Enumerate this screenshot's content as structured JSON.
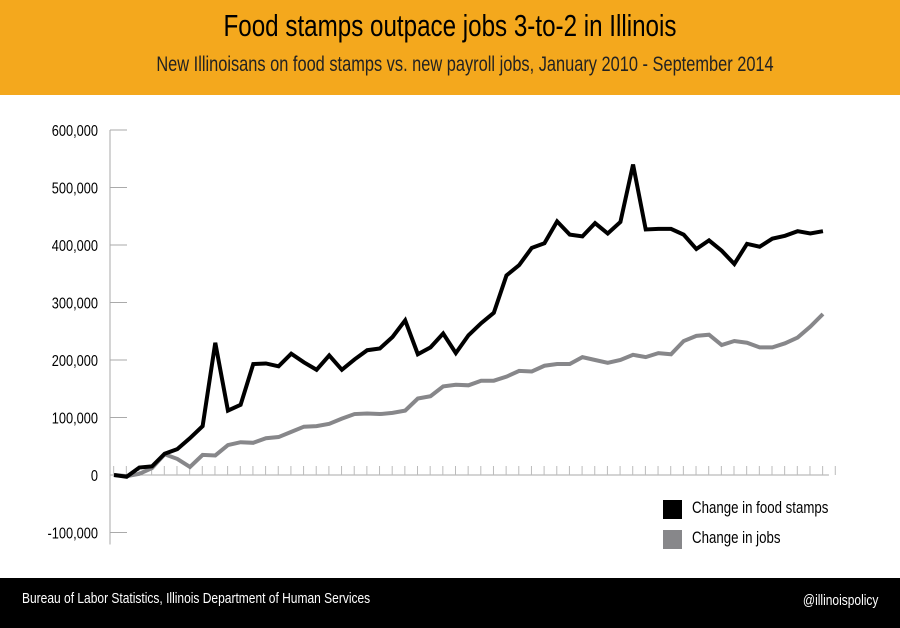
{
  "header": {
    "title": "Food stamps outpace jobs 3-to-2 in Illinois",
    "subtitle": "New Illinoisans on food stamps vs. new payroll jobs, January 2010 - September 2014"
  },
  "footer": {
    "source": "Bureau of Labor Statistics, Illinois Department of Human Services",
    "handle": "@illinoispolicy"
  },
  "chart_data": {
    "type": "line",
    "title": "Food stamps outpace jobs 3-to-2 in Illinois",
    "subtitle": "New Illinoisans on food stamps vs. new payroll jobs, January 2010 - September 2014",
    "x_range": [
      "2010-01",
      "2014-09"
    ],
    "x_interval": "monthly",
    "ylim": [
      -100000,
      600000
    ],
    "yticks": [
      -100000,
      0,
      100000,
      200000,
      300000,
      400000,
      500000,
      600000
    ],
    "ytick_labels": [
      "-100,000",
      "0",
      "100,000",
      "200,000",
      "300,000",
      "400,000",
      "500,000",
      "600,000"
    ],
    "grid": false,
    "legend_placement": "bottom-right",
    "series": [
      {
        "name": "Change in food stamps",
        "color": "#000000",
        "values": [
          0,
          -3000,
          13000,
          15000,
          37000,
          45000,
          64000,
          85000,
          230000,
          112000,
          122000,
          193000,
          194000,
          189000,
          211000,
          196000,
          183000,
          208000,
          183000,
          201000,
          217000,
          220000,
          240000,
          269000,
          210000,
          222000,
          246000,
          212000,
          243000,
          264000,
          282000,
          347000,
          365000,
          395000,
          403000,
          441000,
          418000,
          415000,
          438000,
          420000,
          440000,
          540000,
          427000,
          428000,
          428000,
          418000,
          393000,
          408000,
          390000,
          367000,
          402000,
          397000,
          411000,
          416000,
          424000,
          420000,
          424000
        ]
      },
      {
        "name": "Change in jobs",
        "color": "#87878a",
        "values": [
          0,
          -2000,
          2000,
          12000,
          36000,
          28000,
          14000,
          35000,
          34000,
          52000,
          57000,
          56000,
          64000,
          66000,
          75000,
          84000,
          85000,
          89000,
          98000,
          106000,
          107000,
          106000,
          108000,
          112000,
          133000,
          137000,
          154000,
          157000,
          156000,
          164000,
          164000,
          171000,
          181000,
          180000,
          190000,
          193000,
          193000,
          205000,
          200000,
          195000,
          200000,
          209000,
          205000,
          212000,
          210000,
          233000,
          242000,
          244000,
          226000,
          233000,
          230000,
          222000,
          222000,
          229000,
          239000,
          258000,
          280000
        ]
      }
    ]
  }
}
